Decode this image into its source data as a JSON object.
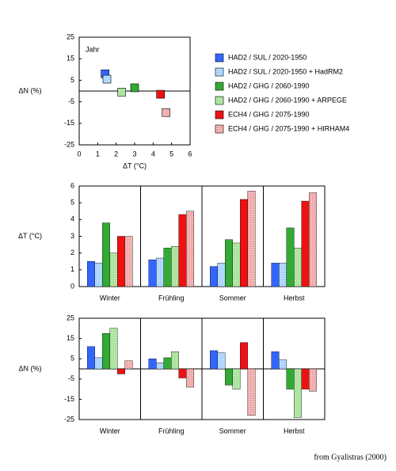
{
  "chart_data": [
    {
      "type": "scatter",
      "annotation": "Jahr",
      "xlabel": "ΔT (°C)",
      "ylabel": "ΔN (%)",
      "xlim": [
        0,
        6
      ],
      "xticks": [
        0,
        1,
        2,
        3,
        4,
        5,
        6
      ],
      "ylim": [
        -25,
        25
      ],
      "yticks": [
        -25,
        -15,
        -5,
        5,
        15,
        25
      ],
      "series": [
        {
          "name": "HAD2 / SUL / 2020-1950",
          "color": "#3366ff",
          "hatch": false,
          "x": [
            1.4
          ],
          "values": [
            8
          ]
        },
        {
          "name": "HAD2 / SUL / 2020-1950 + HadRM2",
          "color": "#99ccff",
          "hatch": true,
          "x": [
            1.5
          ],
          "values": [
            5.5
          ]
        },
        {
          "name": "HAD2 / GHG / 2060-1990",
          "color": "#33aa33",
          "hatch": false,
          "x": [
            3.0
          ],
          "values": [
            1.5
          ]
        },
        {
          "name": "HAD2 / GHG / 2060-1990 + ARPEGE",
          "color": "#99dd88",
          "hatch": true,
          "x": [
            2.3
          ],
          "values": [
            -0.5
          ]
        },
        {
          "name": "ECH4 / GHG / 2075-1990",
          "color": "#ee1111",
          "hatch": false,
          "x": [
            4.4
          ],
          "values": [
            -1.5
          ]
        },
        {
          "name": "ECH4 / GHG / 2075-1990 + HIRHAM4",
          "color": "#ee9999",
          "hatch": true,
          "x": [
            4.7
          ],
          "values": [
            -10
          ]
        }
      ]
    },
    {
      "type": "bar",
      "ylabel": "ΔT (°C)",
      "categories": [
        "Winter",
        "Frühling",
        "Sommer",
        "Herbst"
      ],
      "ylim": [
        0,
        6
      ],
      "yticks": [
        0,
        1,
        2,
        3,
        4,
        5,
        6
      ],
      "series": [
        {
          "color": "#3366ff",
          "hatch": false,
          "values": [
            1.5,
            1.6,
            1.2,
            1.4
          ]
        },
        {
          "color": "#99ccff",
          "hatch": true,
          "values": [
            1.4,
            1.7,
            1.4,
            1.4
          ]
        },
        {
          "color": "#33aa33",
          "hatch": false,
          "values": [
            3.8,
            2.3,
            2.8,
            3.5
          ]
        },
        {
          "color": "#99dd88",
          "hatch": true,
          "values": [
            2.0,
            2.4,
            2.6,
            2.3
          ]
        },
        {
          "color": "#ee1111",
          "hatch": false,
          "values": [
            3.0,
            4.3,
            5.2,
            5.1
          ]
        },
        {
          "color": "#ee9999",
          "hatch": true,
          "values": [
            3.0,
            4.5,
            5.7,
            5.6
          ]
        }
      ]
    },
    {
      "type": "bar",
      "ylabel": "ΔN (%)",
      "categories": [
        "Winter",
        "Frühling",
        "Sommer",
        "Herbst"
      ],
      "ylim": [
        -25,
        25
      ],
      "yticks": [
        -25,
        -15,
        -5,
        5,
        15,
        25
      ],
      "series": [
        {
          "color": "#3366ff",
          "hatch": false,
          "values": [
            11,
            5,
            9,
            8.5
          ]
        },
        {
          "color": "#99ccff",
          "hatch": true,
          "values": [
            5.5,
            3,
            8,
            4.5
          ]
        },
        {
          "color": "#33aa33",
          "hatch": false,
          "values": [
            17.5,
            5.5,
            -8,
            -10
          ]
        },
        {
          "color": "#99dd88",
          "hatch": true,
          "values": [
            20,
            8.5,
            -10,
            -24
          ]
        },
        {
          "color": "#ee1111",
          "hatch": false,
          "values": [
            -2.5,
            -4.5,
            13,
            -10
          ]
        },
        {
          "color": "#ee9999",
          "hatch": true,
          "values": [
            4,
            -9,
            -23,
            -11
          ]
        }
      ]
    }
  ],
  "source": "from Gyalistras (2000)"
}
